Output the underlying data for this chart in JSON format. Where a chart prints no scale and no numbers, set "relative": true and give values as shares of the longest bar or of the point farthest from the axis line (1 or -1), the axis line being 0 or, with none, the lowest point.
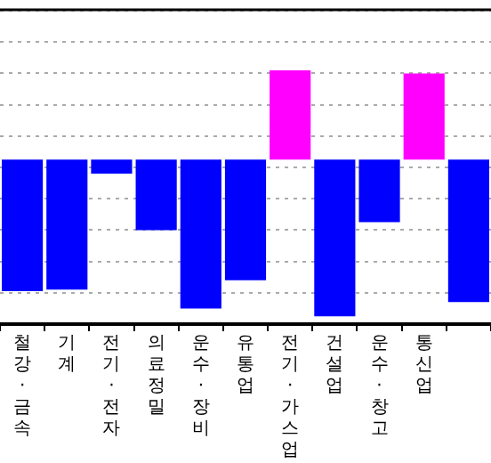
{
  "chart_data": {
    "type": "bar",
    "relative": true,
    "grid": true,
    "categories": [
      "철강·금속",
      "기계",
      "전기·전자",
      "의료정밀",
      "운수·장비",
      "유통업",
      "전기·가스업",
      "건설업",
      "운수·창고",
      "통신업",
      null
    ],
    "values": [
      -0.84,
      -0.83,
      -0.09,
      -0.45,
      -0.95,
      -0.77,
      0.57,
      -1,
      -0.4,
      0.55,
      -0.91
    ],
    "colors": [
      "#0000ff",
      "#0000ff",
      "#0000ff",
      "#0000ff",
      "#0000ff",
      "#0000ff",
      "#ff00ff",
      "#0000ff",
      "#0000ff",
      "#ff00ff",
      "#0000ff"
    ]
  }
}
